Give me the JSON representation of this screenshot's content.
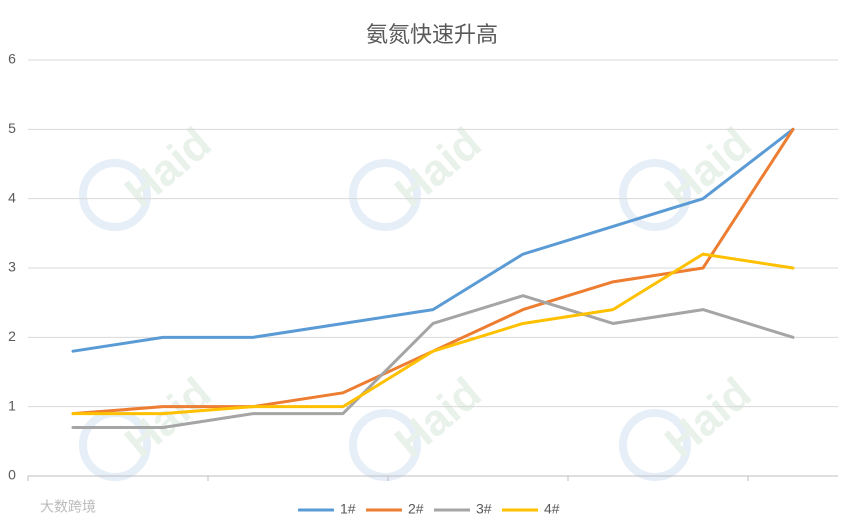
{
  "chart_data": {
    "type": "line",
    "title": "氨氮快速升高",
    "categories": [
      null,
      null,
      null,
      null,
      null,
      null,
      null,
      null,
      null
    ],
    "series": [
      {
        "name": "1#",
        "color": "#5b9bd5",
        "values": [
          1.8,
          2.0,
          2.0,
          2.2,
          2.4,
          3.2,
          3.6,
          4.0,
          5.0
        ]
      },
      {
        "name": "2#",
        "color": "#ed7d31",
        "values": [
          0.9,
          1.0,
          1.0,
          1.2,
          1.8,
          2.4,
          2.8,
          3.0,
          5.0
        ]
      },
      {
        "name": "3#",
        "color": "#a5a5a5",
        "values": [
          0.7,
          0.7,
          0.9,
          0.9,
          2.2,
          2.6,
          2.2,
          2.4,
          2.0
        ]
      },
      {
        "name": "4#",
        "color": "#ffc000",
        "values": [
          0.9,
          0.9,
          1.0,
          1.0,
          1.8,
          2.2,
          2.4,
          3.2,
          3.0
        ]
      }
    ],
    "ylim": [
      0,
      6
    ],
    "yticks": [
      0,
      1,
      2,
      3,
      4,
      5,
      6
    ],
    "grid": true,
    "legend": "bottom",
    "watermark": "Haid",
    "source_mark": "大数跨境"
  }
}
